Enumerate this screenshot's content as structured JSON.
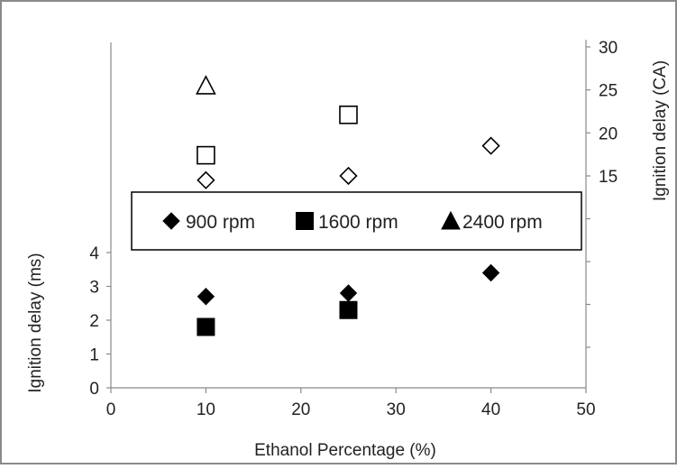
{
  "chart_data": {
    "type": "scatter",
    "title": "",
    "xlabel": "Ethanol Percentage (%)",
    "ylabel": "Ignition delay (ms)",
    "y2label": "Ignition delay (CA)",
    "xlim": [
      0,
      50
    ],
    "xticks": [
      "0",
      "10",
      "20",
      "30",
      "40",
      "50"
    ],
    "ylim": [
      0,
      4
    ],
    "yticks": [
      "0",
      "1",
      "2",
      "3",
      "4"
    ],
    "y2lim": [
      15,
      30
    ],
    "y2ticks": [
      "15",
      "20",
      "25",
      "30"
    ],
    "grid": false,
    "legend_position": "center",
    "series": [
      {
        "name": "900 rpm",
        "marker": "diamond",
        "axis": "ms",
        "filled": true,
        "x": [
          10,
          25,
          40
        ],
        "y": [
          2.7,
          2.8,
          3.4
        ]
      },
      {
        "name": "1600 rpm",
        "marker": "square",
        "axis": "ms",
        "filled": true,
        "x": [
          10,
          25
        ],
        "y": [
          1.8,
          2.3
        ]
      },
      {
        "name": "2400 rpm",
        "marker": "triangle",
        "axis": "ms",
        "filled": true,
        "x": [],
        "y": []
      },
      {
        "name": "900 rpm",
        "marker": "diamond",
        "axis": "CA",
        "filled": false,
        "x": [
          10,
          25,
          40
        ],
        "y": [
          14.5,
          15,
          18.5
        ]
      },
      {
        "name": "1600 rpm",
        "marker": "square",
        "axis": "CA",
        "filled": false,
        "x": [
          10,
          25
        ],
        "y": [
          17.4,
          22.1
        ]
      },
      {
        "name": "2400 rpm",
        "marker": "triangle",
        "axis": "CA",
        "filled": false,
        "x": [
          10
        ],
        "y": [
          25.5
        ]
      }
    ],
    "legend": [
      {
        "label": "900 rpm",
        "marker": "diamond"
      },
      {
        "label": "1600 rpm",
        "marker": "square"
      },
      {
        "label": "2400 rpm",
        "marker": "triangle"
      }
    ],
    "colors": {
      "marker": "#000000",
      "axis": "#8a8a8a",
      "frame": "#8a8a8a",
      "text": "#222222"
    }
  }
}
